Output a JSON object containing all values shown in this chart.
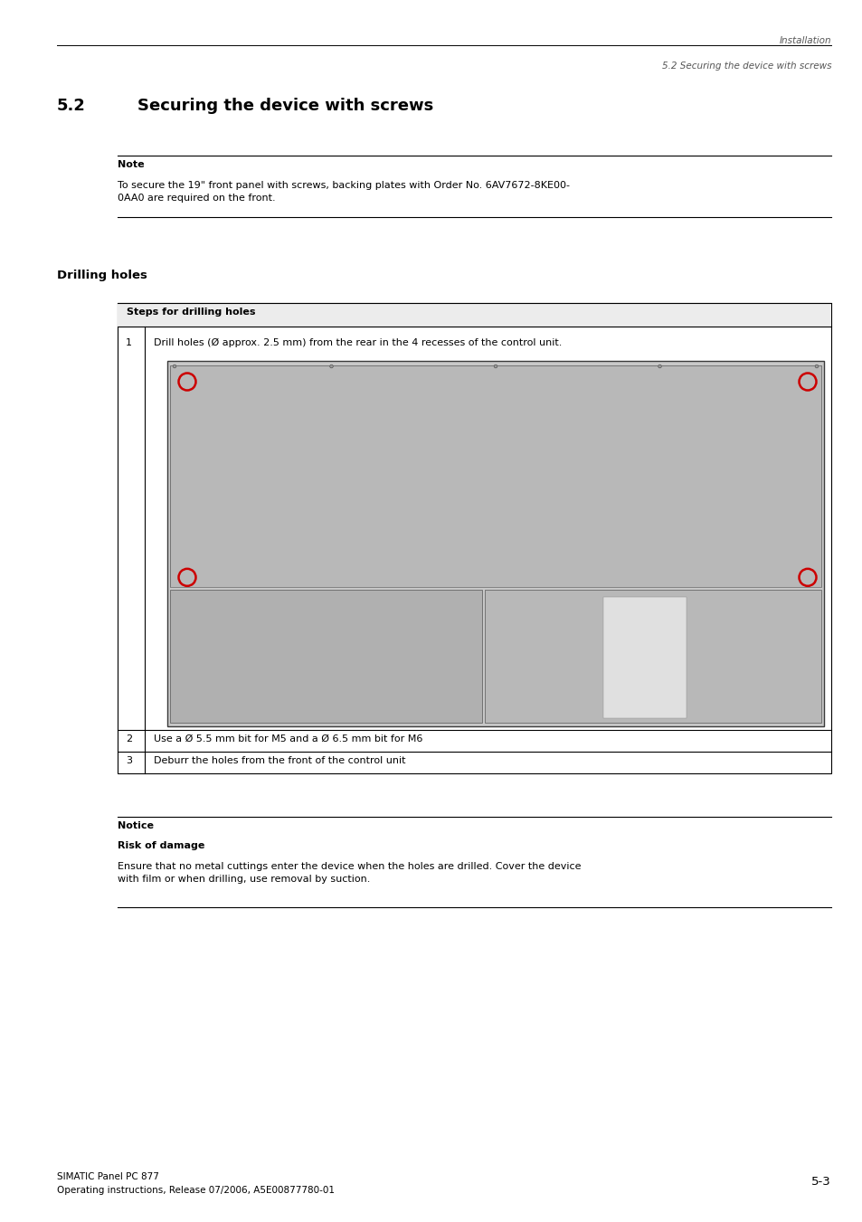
{
  "bg_color": "#ffffff",
  "page_width": 9.54,
  "page_height": 13.51,
  "header_line1": "Installation",
  "header_line2": "5.2 Securing the device with screws",
  "section_number": "5.2",
  "section_title": "Securing the device with screws",
  "note_label": "Note",
  "note_text": "To secure the 19\" front panel with screws, backing plates with Order No. 6AV7672-8KE00-\n0AA0 are required on the front.",
  "drilling_heading": "Drilling holes",
  "table_header": "Steps for drilling holes",
  "table_row1_num": "1",
  "table_row1_text": "Drill holes (Ø approx. 2.5 mm) from the rear in the 4 recesses of the control unit.",
  "table_row2_num": "2",
  "table_row2_text": "Use a Ø 5.5 mm bit for M5 and a Ø 6.5 mm bit for M6",
  "table_row3_num": "3",
  "table_row3_text": "Deburr the holes from the front of the control unit",
  "notice_label": "Notice",
  "notice_sublabel": "Risk of damage",
  "notice_text": "Ensure that no metal cuttings enter the device when the holes are drilled. Cover the device\nwith film or when drilling, use removal by suction.",
  "footer_left1": "SIMATIC Panel PC 877",
  "footer_left2": "Operating instructions, Release 07/2006, A5E00877780-01",
  "footer_right": "5-3",
  "header_italic_color": "#555555",
  "table_border_color": "#000000",
  "text_color": "#000000"
}
